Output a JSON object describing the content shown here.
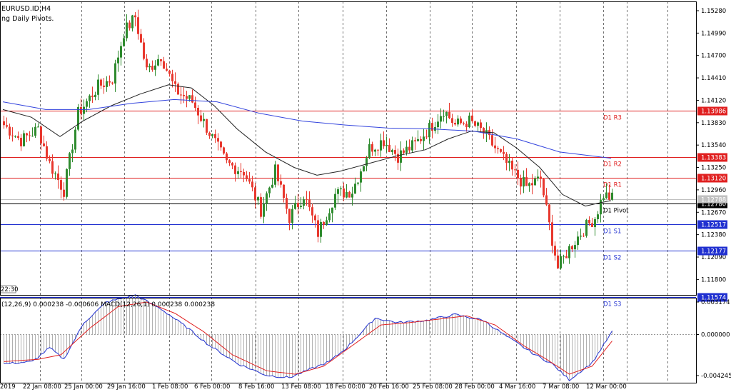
{
  "header": {
    "symbol": "EURUSD.ID,H4",
    "indicator": "ng Daily Pivots."
  },
  "colors": {
    "bull": "#2e8b2e",
    "bear": "#e8382e",
    "ma_fast": "#222222",
    "ma_slow": "#3344dd",
    "resistance": "#e02020",
    "support": "#2030d0",
    "pivot": "#000000",
    "macd_hist": "#b0b0b0",
    "macd_main": "#2030d0",
    "macd_signal": "#e02020"
  },
  "chart_data": [
    {
      "type": "candlestick",
      "ylim": [
        1.116,
        1.154
      ],
      "price_axis_ticks": [
        "1.15280",
        "1.14990",
        "1.14700",
        "1.14410",
        "1.14120",
        "1.13830",
        "1.13540",
        "1.13250",
        "1.12960",
        "1.12670",
        "1.12380",
        "1.12090",
        "1.11800"
      ],
      "pivot_levels": [
        {
          "label": "D1 R3",
          "value": "1.13986",
          "kind": "resistance"
        },
        {
          "label": "D1 R2",
          "value": "1.13383",
          "kind": "resistance"
        },
        {
          "label": "D1 R1",
          "value": "1.13120",
          "kind": "resistance"
        },
        {
          "label": "D1 Pivot",
          "value": "1.12780",
          "kind": "pivot"
        },
        {
          "label": "D1 S1",
          "value": "1.12517",
          "kind": "support"
        },
        {
          "label": "D1 S2",
          "value": "1.12177",
          "kind": "support"
        },
        {
          "label": "D1 S3",
          "value": "1.11574",
          "kind": "support"
        }
      ],
      "bid_label": "1.12788",
      "time_label": "22:30",
      "anchors": [
        {
          "i": 0,
          "v": 1.138
        },
        {
          "i": 6,
          "v": 1.136
        },
        {
          "i": 12,
          "v": 1.1375
        },
        {
          "i": 16,
          "v": 1.133
        },
        {
          "i": 21,
          "v": 1.1295
        },
        {
          "i": 26,
          "v": 1.1395
        },
        {
          "i": 33,
          "v": 1.143
        },
        {
          "i": 38,
          "v": 1.144
        },
        {
          "i": 42,
          "v": 1.15
        },
        {
          "i": 46,
          "v": 1.152
        },
        {
          "i": 50,
          "v": 1.145
        },
        {
          "i": 55,
          "v": 1.147
        },
        {
          "i": 60,
          "v": 1.1425
        },
        {
          "i": 66,
          "v": 1.141
        },
        {
          "i": 72,
          "v": 1.137
        },
        {
          "i": 78,
          "v": 1.133
        },
        {
          "i": 84,
          "v": 1.132
        },
        {
          "i": 90,
          "v": 1.127
        },
        {
          "i": 95,
          "v": 1.132
        },
        {
          "i": 100,
          "v": 1.126
        },
        {
          "i": 105,
          "v": 1.129
        },
        {
          "i": 110,
          "v": 1.124
        },
        {
          "i": 116,
          "v": 1.129
        },
        {
          "i": 122,
          "v": 1.1295
        },
        {
          "i": 128,
          "v": 1.135
        },
        {
          "i": 133,
          "v": 1.136
        },
        {
          "i": 138,
          "v": 1.134
        },
        {
          "i": 144,
          "v": 1.1355
        },
        {
          "i": 150,
          "v": 1.138
        },
        {
          "i": 154,
          "v": 1.14
        },
        {
          "i": 158,
          "v": 1.138
        },
        {
          "i": 163,
          "v": 1.1385
        },
        {
          "i": 168,
          "v": 1.137
        },
        {
          "i": 172,
          "v": 1.135
        },
        {
          "i": 178,
          "v": 1.132
        },
        {
          "i": 183,
          "v": 1.13
        },
        {
          "i": 188,
          "v": 1.131
        },
        {
          "i": 191,
          "v": 1.125
        },
        {
          "i": 194,
          "v": 1.1195
        },
        {
          "i": 198,
          "v": 1.122
        },
        {
          "i": 203,
          "v": 1.1245
        },
        {
          "i": 207,
          "v": 1.126
        },
        {
          "i": 210,
          "v": 1.129
        },
        {
          "i": 213,
          "v": 1.1285
        }
      ],
      "series": [
        {
          "name": "",
          "kind": "ma_fast",
          "points": [
            [
              0,
              1.14
            ],
            [
              10,
              1.139
            ],
            [
              20,
              1.1365
            ],
            [
              28,
              1.1385
            ],
            [
              38,
              1.1405
            ],
            [
              48,
              1.142
            ],
            [
              58,
              1.1432
            ],
            [
              66,
              1.1428
            ],
            [
              74,
              1.1405
            ],
            [
              82,
              1.1375
            ],
            [
              92,
              1.1345
            ],
            [
              102,
              1.1325
            ],
            [
              110,
              1.1315
            ],
            [
              118,
              1.132
            ],
            [
              128,
              1.133
            ],
            [
              138,
              1.134
            ],
            [
              148,
              1.1348
            ],
            [
              156,
              1.1362
            ],
            [
              164,
              1.1372
            ],
            [
              172,
              1.137
            ],
            [
              180,
              1.135
            ],
            [
              188,
              1.1325
            ],
            [
              196,
              1.129
            ],
            [
              204,
              1.1275
            ],
            [
              210,
              1.128
            ],
            [
              213,
              1.1282
            ]
          ]
        },
        {
          "name": "",
          "kind": "ma_slow",
          "points": [
            [
              0,
              1.141
            ],
            [
              15,
              1.14
            ],
            [
              30,
              1.14
            ],
            [
              45,
              1.1408
            ],
            [
              60,
              1.1413
            ],
            [
              75,
              1.141
            ],
            [
              90,
              1.1395
            ],
            [
              105,
              1.1385
            ],
            [
              120,
              1.138
            ],
            [
              135,
              1.1376
            ],
            [
              150,
              1.1375
            ],
            [
              165,
              1.1372
            ],
            [
              180,
              1.1362
            ],
            [
              195,
              1.1345
            ],
            [
              213,
              1.1337
            ]
          ]
        }
      ]
    },
    {
      "type": "macd",
      "title": "(12,26,9) 0.000238 -0.000606 MACD(12,26,1) 0.000238 0.000238",
      "ylim": [
        -0.004245,
        0.003174
      ],
      "axis_ticks": [
        "0.003174",
        "0.000000",
        "-0.004245"
      ],
      "main_anchors": [
        {
          "i": 0,
          "v": -0.0026
        },
        {
          "i": 10,
          "v": -0.0024
        },
        {
          "i": 16,
          "v": -0.0012
        },
        {
          "i": 21,
          "v": -0.0022
        },
        {
          "i": 28,
          "v": 0.001
        },
        {
          "i": 36,
          "v": 0.0028
        },
        {
          "i": 46,
          "v": 0.0034
        },
        {
          "i": 55,
          "v": 0.0022
        },
        {
          "i": 64,
          "v": 0.0006
        },
        {
          "i": 72,
          "v": -0.001
        },
        {
          "i": 82,
          "v": -0.0026
        },
        {
          "i": 92,
          "v": -0.0036
        },
        {
          "i": 100,
          "v": -0.0038
        },
        {
          "i": 108,
          "v": -0.003
        },
        {
          "i": 114,
          "v": -0.0024
        },
        {
          "i": 120,
          "v": -0.0012
        },
        {
          "i": 130,
          "v": 0.0014
        },
        {
          "i": 138,
          "v": 0.001
        },
        {
          "i": 148,
          "v": 0.0012
        },
        {
          "i": 158,
          "v": 0.0017
        },
        {
          "i": 168,
          "v": 0.0012
        },
        {
          "i": 176,
          "v": -0.0002
        },
        {
          "i": 186,
          "v": -0.0018
        },
        {
          "i": 192,
          "v": -0.0026
        },
        {
          "i": 198,
          "v": -0.004
        },
        {
          "i": 206,
          "v": -0.0025
        },
        {
          "i": 213,
          "v": 0.0002
        }
      ],
      "signal_anchors": [
        {
          "i": 0,
          "v": -0.0024
        },
        {
          "i": 12,
          "v": -0.0022
        },
        {
          "i": 20,
          "v": -0.0018
        },
        {
          "i": 30,
          "v": 0.0005
        },
        {
          "i": 40,
          "v": 0.0024
        },
        {
          "i": 50,
          "v": 0.0028
        },
        {
          "i": 60,
          "v": 0.0018
        },
        {
          "i": 70,
          "v": 0.0002
        },
        {
          "i": 80,
          "v": -0.0018
        },
        {
          "i": 92,
          "v": -0.0032
        },
        {
          "i": 102,
          "v": -0.0035
        },
        {
          "i": 112,
          "v": -0.0028
        },
        {
          "i": 122,
          "v": -0.001
        },
        {
          "i": 132,
          "v": 0.0008
        },
        {
          "i": 142,
          "v": 0.001
        },
        {
          "i": 152,
          "v": 0.0013
        },
        {
          "i": 162,
          "v": 0.0016
        },
        {
          "i": 172,
          "v": 0.0008
        },
        {
          "i": 182,
          "v": -0.001
        },
        {
          "i": 190,
          "v": -0.0022
        },
        {
          "i": 198,
          "v": -0.0035
        },
        {
          "i": 206,
          "v": -0.0028
        },
        {
          "i": 213,
          "v": -0.0006
        }
      ]
    }
  ],
  "x_axis_labels": [
    "2019",
    "22 Jan 08:00",
    "25 Jan 00:00",
    "29 Jan 16:00",
    "1 Feb 08:00",
    "6 Feb 00:00",
    "8 Feb 16:00",
    "13 Feb 08:00",
    "18 Feb 00:00",
    "20 Feb 16:00",
    "25 Feb 08:00",
    "28 Feb 00:00",
    "4 Mar 16:00",
    "7 Mar 08:00",
    "12 Mar 00:00"
  ]
}
